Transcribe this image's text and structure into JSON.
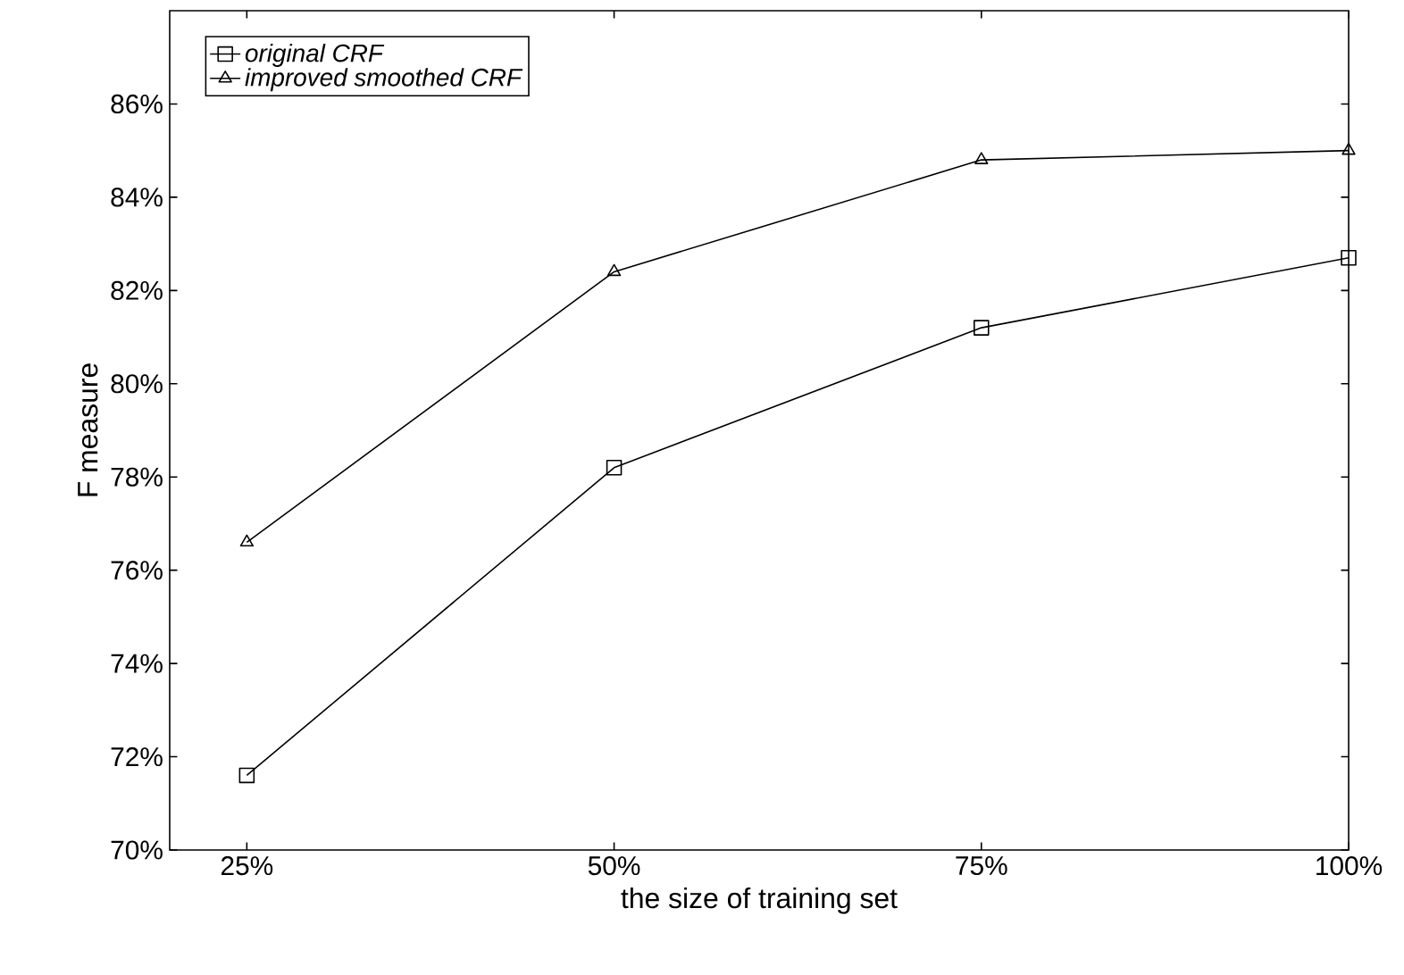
{
  "chart_data": {
    "type": "line",
    "xlabel": "the size of training set",
    "ylabel": "F measure",
    "categories": [
      "25%",
      "50%",
      "75%",
      "100%"
    ],
    "series": [
      {
        "name": "*original CRF*",
        "color": "#000000",
        "marker": "square",
        "values": [
          71.6,
          78.2,
          81.2,
          82.7
        ]
      },
      {
        "name": "*improved smoothed CRF*",
        "color": "#000000",
        "marker": "triangle",
        "values": [
          76.6,
          82.4,
          84.8,
          85.0
        ]
      }
    ],
    "ylim": [
      70,
      88
    ],
    "yticks": [
      {
        "value": 70,
        "label": "70%"
      },
      {
        "value": 72,
        "label": "72%"
      },
      {
        "value": 74,
        "label": "74%"
      },
      {
        "value": 76,
        "label": "76%"
      },
      {
        "value": 78,
        "label": "78%"
      },
      {
        "value": 80,
        "label": "80%"
      },
      {
        "value": 82,
        "label": "82%"
      },
      {
        "value": 84,
        "label": "84%"
      },
      {
        "value": 86,
        "label": "86%"
      }
    ],
    "legend": "top left",
    "grid": false,
    "line_style": "solid"
  }
}
